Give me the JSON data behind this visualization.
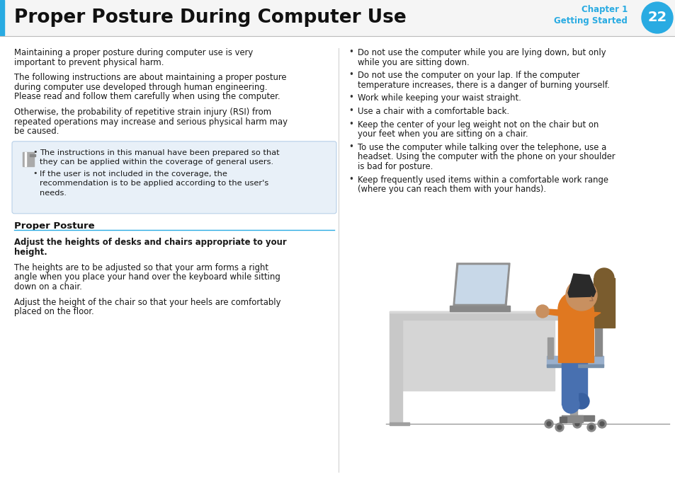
{
  "title": "Proper Posture During Computer Use",
  "chapter_label": "Chapter 1",
  "chapter_sub": "Getting Started",
  "page_num": "22",
  "blue_color": "#29ABE2",
  "title_color": "#1a1a1a",
  "text_color": "#1a1a1a",
  "bg_color": "#ffffff",
  "note_bg": "#e8f0f8",
  "note_border": "#b8d0e8",
  "left_bar_color": "#29ABE2",
  "separator_color": "#cccccc",
  "para1": "Maintaining a proper posture during computer use is very\nimportant to prevent physical harm.",
  "para2": "The following instructions are about maintaining a proper posture\nduring computer use developed through human engineering.\nPlease read and follow them carefully when using the computer.",
  "para3": "Otherwise, the probability of repetitive strain injury (RSI) from\nrepeated operations may increase and serious physical harm may\nbe caused.",
  "note_bullet1": "The instructions in this manual have been prepared so that\nthey can be applied within the coverage of general users.",
  "note_bullet2": "If the user is not included in the coverage, the\nrecommendation is to be applied according to the user's\nneeds.",
  "section_title": "Proper Posture",
  "subsection_title": "Adjust the heights of desks and chairs appropriate to your\nheight.",
  "body1": "The heights are to be adjusted so that your arm forms a right\nangle when you place your hand over the keyboard while sitting\ndown on a chair.",
  "body2": "Adjust the height of the chair so that your heels are comfortably\nplaced on the floor.",
  "right_bullets": [
    "Do not use the computer while you are lying down, but only\nwhile you are sitting down.",
    "Do not use the computer on your lap. If the computer\ntemperature increases, there is a danger of burning yourself.",
    "Work while keeping your waist straight.",
    "Use a chair with a comfortable back.",
    "Keep the center of your leg weight not on the chair but on\nyour feet when you are sitting on a chair.",
    "To use the computer while talking over the telephone, use a\nheadset. Using the computer with the phone on your shoulder\nis bad for posture.",
    "Keep frequently used items within a comfortable work range\n(where you can reach them with your hands)."
  ]
}
